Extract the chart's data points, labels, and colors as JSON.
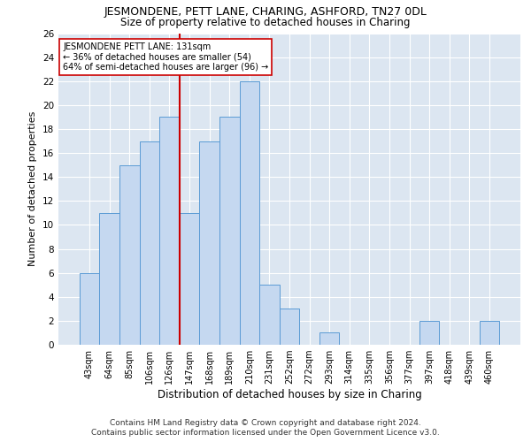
{
  "title": "JESMONDENE, PETT LANE, CHARING, ASHFORD, TN27 0DL",
  "subtitle": "Size of property relative to detached houses in Charing",
  "xlabel": "Distribution of detached houses by size in Charing",
  "ylabel": "Number of detached properties",
  "categories": [
    "43sqm",
    "64sqm",
    "85sqm",
    "106sqm",
    "126sqm",
    "147sqm",
    "168sqm",
    "189sqm",
    "210sqm",
    "231sqm",
    "252sqm",
    "272sqm",
    "293sqm",
    "314sqm",
    "335sqm",
    "356sqm",
    "377sqm",
    "397sqm",
    "418sqm",
    "439sqm",
    "460sqm"
  ],
  "values": [
    6,
    11,
    15,
    17,
    19,
    11,
    17,
    19,
    22,
    5,
    3,
    0,
    1,
    0,
    0,
    0,
    0,
    2,
    0,
    0,
    2
  ],
  "bar_color": "#c5d8f0",
  "bar_edge_color": "#5b9bd5",
  "reference_line_x": 4.5,
  "reference_label": "JESMONDENE PETT LANE: 131sqm",
  "reference_line1": "← 36% of detached houses are smaller (54)",
  "reference_line2": "64% of semi-detached houses are larger (96) →",
  "annotation_box_color": "#ffffff",
  "annotation_box_edge": "#cc0000",
  "vline_color": "#cc0000",
  "ylim": [
    0,
    26
  ],
  "yticks": [
    0,
    2,
    4,
    6,
    8,
    10,
    12,
    14,
    16,
    18,
    20,
    22,
    24,
    26
  ],
  "footnote1": "Contains HM Land Registry data © Crown copyright and database right 2024.",
  "footnote2": "Contains public sector information licensed under the Open Government Licence v3.0.",
  "background_color": "#ffffff",
  "plot_background": "#dce6f1",
  "grid_color": "#ffffff"
}
